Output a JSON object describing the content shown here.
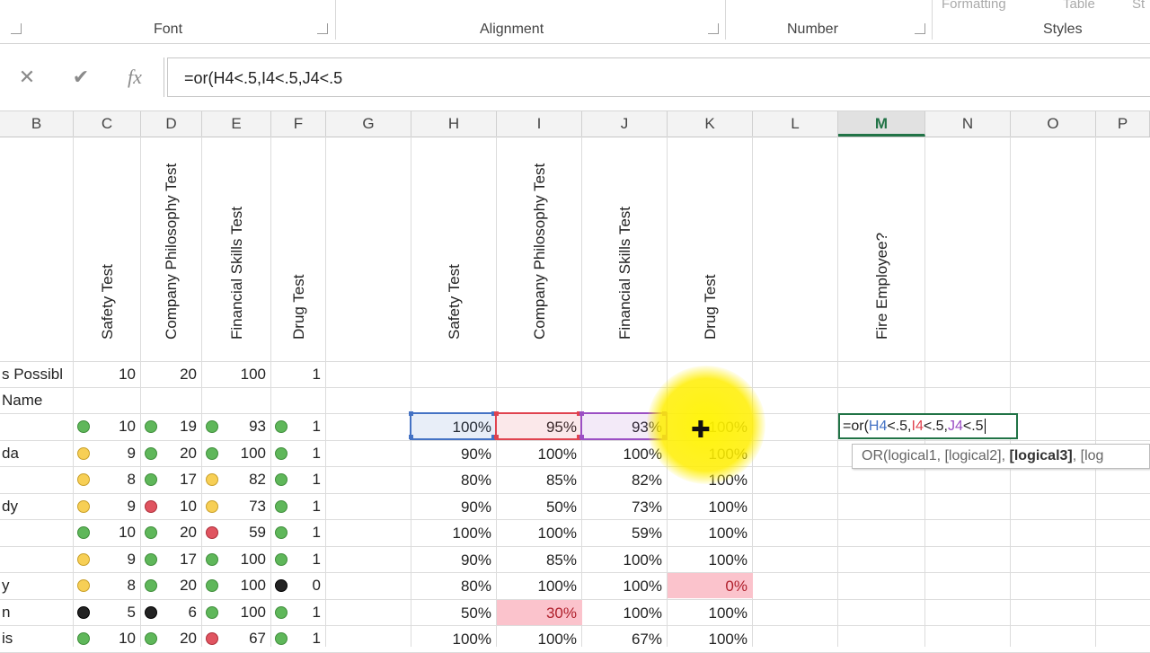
{
  "ribbon": {
    "groups": [
      "Font",
      "Alignment",
      "Number",
      "Styles"
    ],
    "faded": [
      "Formatting",
      "Table",
      "St"
    ]
  },
  "formula_bar": {
    "cancel": "✕",
    "enter": "✔",
    "fx": "fx",
    "formula": "=or(H4<.5,I4<.5,J4<.5"
  },
  "columns": [
    "B",
    "C",
    "D",
    "E",
    "F",
    "G",
    "H",
    "I",
    "J",
    "K",
    "L",
    "M",
    "N",
    "O",
    "P"
  ],
  "selected_column": "M",
  "headers_vertical": {
    "C": "Safety Test",
    "D": "Company Philosophy Test",
    "E": "Financial Skills Test",
    "F": "Drug Test",
    "H": "Safety Test",
    "I": "Company Philosophy Test",
    "J": "Financial Skills Test",
    "K": "Drug Test",
    "M": "Fire Employee?"
  },
  "points_row": {
    "label": "s Possibl",
    "C": "10",
    "D": "20",
    "E": "100",
    "F": "1"
  },
  "name_label": "Name",
  "rows": [
    {
      "name": "",
      "C": "10",
      "Cd": "green",
      "D": "19",
      "Dd": "green",
      "E": "93",
      "Ed": "green",
      "F": "1",
      "Fd": "green",
      "H": "100%",
      "I": "95%",
      "J": "93%",
      "K": "100%"
    },
    {
      "name": "da",
      "C": "9",
      "Cd": "yellow",
      "D": "20",
      "Dd": "green",
      "E": "100",
      "Ed": "green",
      "F": "1",
      "Fd": "green",
      "H": "90%",
      "I": "100%",
      "J": "100%",
      "K": "100%"
    },
    {
      "name": "",
      "C": "8",
      "Cd": "yellow",
      "D": "17",
      "Dd": "green",
      "E": "82",
      "Ed": "yellow",
      "F": "1",
      "Fd": "green",
      "H": "80%",
      "I": "85%",
      "J": "82%",
      "K": "100%"
    },
    {
      "name": "dy",
      "C": "9",
      "Cd": "yellow",
      "D": "10",
      "Dd": "red",
      "E": "73",
      "Ed": "yellow",
      "F": "1",
      "Fd": "green",
      "H": "90%",
      "I": "50%",
      "J": "73%",
      "K": "100%"
    },
    {
      "name": "",
      "C": "10",
      "Cd": "green",
      "D": "20",
      "Dd": "green",
      "E": "59",
      "Ed": "red",
      "F": "1",
      "Fd": "green",
      "H": "100%",
      "I": "100%",
      "J": "59%",
      "K": "100%"
    },
    {
      "name": "",
      "C": "9",
      "Cd": "yellow",
      "D": "17",
      "Dd": "green",
      "E": "100",
      "Ed": "green",
      "F": "1",
      "Fd": "green",
      "H": "90%",
      "I": "85%",
      "J": "100%",
      "K": "100%"
    },
    {
      "name": "y",
      "C": "8",
      "Cd": "yellow",
      "D": "20",
      "Dd": "green",
      "E": "100",
      "Ed": "green",
      "F": "0",
      "Fd": "black",
      "H": "80%",
      "I": "100%",
      "J": "100%",
      "K": "0%"
    },
    {
      "name": "n",
      "C": "5",
      "Cd": "black",
      "D": "6",
      "Dd": "black",
      "E": "100",
      "Ed": "green",
      "F": "1",
      "Fd": "green",
      "H": "50%",
      "I": "30%",
      "J": "100%",
      "K": "100%"
    },
    {
      "name": "is",
      "C": "10",
      "Cd": "green",
      "D": "20",
      "Dd": "green",
      "E": "67",
      "Ed": "red",
      "F": "1",
      "Fd": "green",
      "H": "100%",
      "I": "100%",
      "J": "67%",
      "K": "100%"
    }
  ],
  "pink_cells": [
    [
      6,
      "K"
    ],
    [
      7,
      "I"
    ]
  ],
  "edit": {
    "prefix": "=or(",
    "ref1": "H4",
    "op1": "<.5,",
    "ref2": "I4",
    "op2": "<.5,",
    "ref3": "J4",
    "op3": "<.5"
  },
  "tooltip": {
    "func": "OR(logical1, [logical2], ",
    "current": "[logical3]",
    "rest": ", [log"
  },
  "colors": {
    "ref1": "#4472c4",
    "ref2": "#e0434f",
    "ref3": "#9b4fc4",
    "accent": "#217346"
  }
}
